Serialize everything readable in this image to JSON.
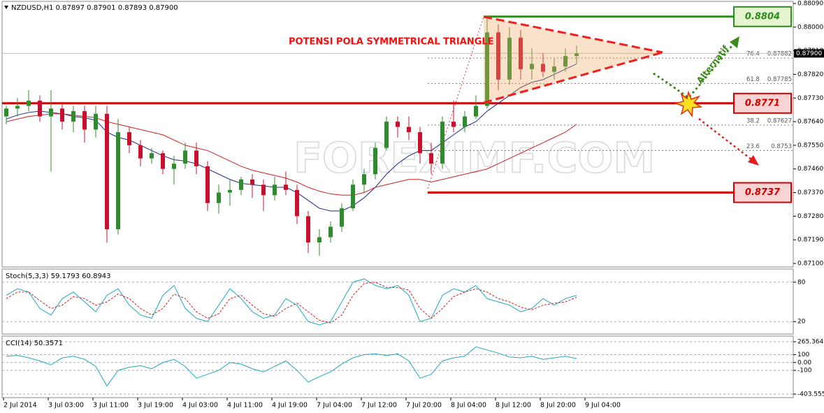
{
  "chart_data": [
    {
      "type": "candlestick",
      "title": "NZDUSD,H1 0.87897 0.87901 0.87893 0.87900",
      "categories": [
        "2 Jul 2014",
        null,
        null,
        null,
        "3 Jul 03:00",
        null,
        null,
        null,
        "3 Jul 11:00",
        null,
        null,
        null,
        "3 Jul 19:00",
        null,
        null,
        null,
        "4 Jul 03:00",
        null,
        null,
        null,
        "4 Jul 11:00",
        null,
        null,
        null,
        "4 Jul 19:00",
        null,
        null,
        null,
        "7 Jul 04:00",
        null,
        null,
        null,
        "7 Jul 12:00",
        null,
        null,
        null,
        "7 Jul 20:00",
        null,
        null,
        null,
        "8 Jul 04:00",
        null,
        null,
        null,
        "8 Jul 12:00",
        null,
        null,
        null,
        "8 Jul 20:00",
        null,
        null,
        null,
        "9 Jul 04:00"
      ],
      "open": [
        0.8766,
        0.8769,
        0.877,
        0.8772,
        0.8766,
        0.8769,
        0.8764,
        0.8768,
        0.8761,
        0.8767,
        0.8723,
        0.876,
        0.8755,
        0.875,
        0.8752,
        0.8746,
        0.8748,
        0.8753,
        0.8747,
        0.8733,
        0.8737,
        0.8738,
        0.8742,
        0.874,
        0.8736,
        0.874,
        0.8738,
        0.8728,
        0.8718,
        0.872,
        0.8724,
        0.8731,
        0.874,
        0.8744,
        0.8754,
        0.8764,
        0.8762,
        0.876,
        0.8752,
        0.8748,
        0.8764,
        0.8762,
        0.8766,
        0.877,
        0.8798,
        0.878,
        0.8796,
        0.8784,
        0.8786,
        0.8783,
        0.8785,
        0.8789,
        null
      ],
      "high": [
        0.877,
        0.8773,
        0.8776,
        0.8774,
        0.8776,
        0.8771,
        0.877,
        0.877,
        0.877,
        0.877,
        0.8765,
        0.8762,
        0.8757,
        0.8754,
        0.8753,
        0.8751,
        0.8756,
        0.8756,
        0.8749,
        0.874,
        0.8742,
        0.8743,
        0.8744,
        0.8742,
        0.8743,
        0.8745,
        0.874,
        0.873,
        0.8723,
        0.8726,
        0.8733,
        0.8742,
        0.8746,
        0.8756,
        0.8766,
        0.8766,
        0.8766,
        0.8762,
        0.8756,
        0.8766,
        0.8772,
        0.8768,
        0.8774,
        0.8804,
        0.8801,
        0.88,
        0.8799,
        0.8792,
        0.879,
        0.8788,
        0.8792,
        0.8793,
        null
      ],
      "low": [
        0.8763,
        0.8766,
        0.8768,
        0.8764,
        0.8745,
        0.8761,
        0.876,
        0.8756,
        0.8758,
        0.8718,
        0.8721,
        0.8752,
        0.8747,
        0.8748,
        0.8744,
        0.874,
        0.8746,
        0.8744,
        0.873,
        0.8729,
        0.8732,
        0.8736,
        0.8735,
        0.873,
        0.8734,
        0.8736,
        0.8725,
        0.8714,
        0.8713,
        0.8718,
        0.8722,
        0.873,
        0.8737,
        0.8742,
        0.8753,
        0.8758,
        0.8757,
        0.8748,
        0.8744,
        0.8746,
        0.876,
        0.876,
        0.8765,
        0.8769,
        0.8776,
        0.8778,
        0.878,
        0.878,
        0.8781,
        0.878,
        0.8783,
        0.8786,
        null
      ],
      "close": [
        0.8769,
        0.877,
        0.8772,
        0.8766,
        0.8769,
        0.8764,
        0.8768,
        0.8761,
        0.8767,
        0.8723,
        0.876,
        0.8755,
        0.875,
        0.8752,
        0.8746,
        0.8748,
        0.8753,
        0.8747,
        0.8733,
        0.8737,
        0.8738,
        0.8742,
        0.874,
        0.8736,
        0.874,
        0.8738,
        0.8728,
        0.8718,
        0.872,
        0.8724,
        0.8731,
        0.874,
        0.8744,
        0.8754,
        0.8764,
        0.8762,
        0.876,
        0.8752,
        0.8748,
        0.8764,
        0.8762,
        0.8766,
        0.877,
        0.8798,
        0.878,
        0.8796,
        0.8784,
        0.8786,
        0.8783,
        0.8785,
        0.8789,
        0.879,
        null
      ],
      "up_color": "#2e8b2e",
      "down_color": "#c8102e",
      "series": [
        {
          "color": "#1a2a8c",
          "values": [
            0.8765,
            0.87665,
            0.87675,
            0.8768,
            0.87675,
            0.8767,
            0.8766,
            0.87655,
            0.87645,
            0.876,
            0.8758,
            0.8757,
            0.8755,
            0.8753,
            0.8751,
            0.87495,
            0.8749,
            0.8748,
            0.8746,
            0.8744,
            0.8742,
            0.87405,
            0.874,
            0.87395,
            0.8739,
            0.8739,
            0.8737,
            0.8734,
            0.8731,
            0.873,
            0.873,
            0.8732,
            0.8735,
            0.8739,
            0.8744,
            0.8748,
            0.8751,
            0.8753,
            0.8753,
            0.8756,
            0.8759,
            0.8762,
            0.8764,
            0.8768,
            0.8771,
            0.8774,
            0.8777,
            0.8779,
            0.878,
            0.8782,
            0.8784,
            0.8786,
            null
          ]
        },
        {
          "color": "#d42020",
          "values": [
            0.8764,
            0.8765,
            0.8766,
            0.87665,
            0.8767,
            0.8767,
            0.87665,
            0.8766,
            0.87655,
            0.8764,
            0.8763,
            0.8762,
            0.8761,
            0.876,
            0.8759,
            0.8757,
            0.8755,
            0.8754,
            0.8753,
            0.8751,
            0.8749,
            0.8747,
            0.87455,
            0.87445,
            0.87435,
            0.87425,
            0.8741,
            0.8739,
            0.87375,
            0.87365,
            0.8736,
            0.8736,
            0.8737,
            0.8739,
            0.874,
            0.8741,
            0.8742,
            0.8742,
            0.8741,
            0.8742,
            0.8743,
            0.8744,
            0.8745,
            0.8746,
            0.8748,
            0.875,
            0.8752,
            0.8754,
            0.8756,
            0.8758,
            0.876,
            0.8763,
            null
          ]
        }
      ],
      "ylim": [
        0.871,
        0.8809
      ],
      "yticks": [
        {
          "value": 0.8809,
          "label": "0.88090"
        },
        {
          "value": 0.88,
          "label": "0.88000"
        },
        {
          "value": 0.8791,
          "label": "0.87910"
        },
        {
          "value": 0.8782,
          "label": "0.87820"
        },
        {
          "value": 0.8773,
          "label": "0.87730"
        },
        {
          "value": 0.8764,
          "label": "0.87640"
        },
        {
          "value": 0.8755,
          "label": "0.87550"
        },
        {
          "value": 0.8746,
          "label": "0.87460"
        },
        {
          "value": 0.8737,
          "label": "0.87370"
        },
        {
          "value": 0.8728,
          "label": "0.87280"
        },
        {
          "value": 0.8719,
          "label": "0.87190"
        },
        {
          "value": 0.871,
          "label": "0.87100"
        }
      ],
      "current_price": {
        "value": 0.879,
        "label": "0.87900"
      },
      "levels": [
        {
          "value": 0.8804,
          "color": "#2e8b1e",
          "fill": "#e6f4cf"
        },
        {
          "value": 0.8771,
          "color": "#d00000",
          "fill": "#f9d4d4"
        },
        {
          "value": 0.8737,
          "color": "#d00000",
          "fill": "#f9d4d4"
        }
      ],
      "fibonacci": [
        {
          "level": "76.4",
          "value": 0.87882
        },
        {
          "level": "61.8",
          "value": 0.87785
        },
        {
          "level": "38.2",
          "value": 0.87627
        },
        {
          "level": "23.6",
          "value": 0.8753
        }
      ],
      "annotations": [
        "POTENSI POLA SYMMETRICAL TRIANGLE",
        "Alternatif"
      ],
      "watermark": "FOREXIMF.COM"
    },
    {
      "type": "line",
      "title": "Stoch(5,3,3) 59.1793 60.8943",
      "series": [
        {
          "color": "#20a8c0",
          "values": [
            60,
            70,
            65,
            40,
            30,
            55,
            65,
            50,
            35,
            60,
            70,
            45,
            30,
            25,
            60,
            75,
            40,
            25,
            20,
            45,
            70,
            55,
            35,
            25,
            30,
            55,
            45,
            20,
            15,
            20,
            50,
            80,
            85,
            75,
            70,
            75,
            60,
            20,
            25,
            60,
            70,
            65,
            75,
            55,
            50,
            45,
            35,
            40,
            55,
            45,
            55,
            60,
            null
          ]
        },
        {
          "color": "#d42020",
          "dashed": true,
          "values": [
            55,
            65,
            65,
            52,
            40,
            45,
            58,
            55,
            45,
            50,
            62,
            55,
            40,
            30,
            40,
            62,
            55,
            35,
            25,
            32,
            55,
            60,
            45,
            32,
            28,
            40,
            48,
            35,
            22,
            18,
            30,
            60,
            78,
            80,
            72,
            72,
            68,
            40,
            25,
            40,
            58,
            65,
            70,
            65,
            55,
            50,
            42,
            38,
            45,
            48,
            50,
            57,
            null
          ]
        }
      ],
      "ylim": [
        0,
        100
      ],
      "yticks": [
        20,
        80
      ],
      "grid": true
    },
    {
      "type": "line",
      "title": "CCI(14) 50.3571",
      "series": [
        {
          "color": "#20a8c0",
          "values": [
            80,
            90,
            60,
            20,
            -30,
            60,
            80,
            40,
            -50,
            -300,
            -100,
            -60,
            -40,
            -80,
            0,
            40,
            -50,
            -200,
            -150,
            -100,
            0,
            -20,
            -80,
            -120,
            -50,
            20,
            -100,
            -250,
            -180,
            -120,
            -20,
            60,
            100,
            110,
            90,
            110,
            20,
            -200,
            -150,
            20,
            60,
            80,
            200,
            160,
            120,
            70,
            60,
            80,
            40,
            60,
            80,
            50,
            null
          ]
        }
      ],
      "ylim": [
        -403.5555,
        265.3645
      ],
      "yticks": [
        265.3645,
        100,
        {
          "value": 0,
          "label": "0.00"
        },
        -100,
        -403.5555
      ],
      "grid": true
    }
  ]
}
